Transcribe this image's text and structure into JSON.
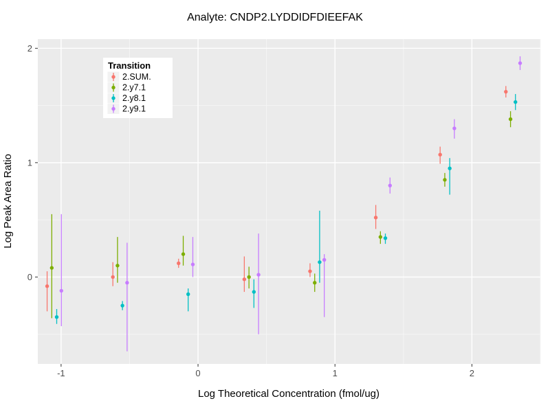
{
  "style": {
    "page_bg": "#FFFFFF",
    "panel_bg": "#EBEBEB",
    "grid_major": "#FFFFFF",
    "grid_minor": "#F5F5F5",
    "tick_color": "#333333",
    "tick_label_color": "#4D4D4D",
    "text_color": "#000000",
    "legend_bg": "#FFFFFF",
    "legend_key_bg": "#F2F2F2"
  },
  "chart_data": {
    "type": "scatter",
    "subtype": "pointrange-with-error-bars",
    "title": "Analyte: CNDP2.LYDDIDFDIEEFAK",
    "xlabel": "Log Theoretical Concentration (fmol/ug)",
    "ylabel": "Log Peak Area Ratio",
    "xlim": [
      -1.17,
      2.5
    ],
    "ylim": [
      -0.76,
      2.08
    ],
    "x_ticks": [
      -1,
      0,
      1,
      2
    ],
    "y_ticks": [
      0,
      1,
      2
    ],
    "x_minor": [
      -0.5,
      0.5,
      1.5,
      2.5
    ],
    "y_minor": [
      -0.5,
      0.5,
      1.5
    ],
    "grid": true,
    "legend_title": "Transition",
    "legend_position": "inside-top-left",
    "dodge": [
      -0.052,
      -0.018,
      0.018,
      0.052
    ],
    "x": [
      -1.05,
      -0.57,
      -0.09,
      0.39,
      0.87,
      1.35,
      1.82,
      2.3
    ],
    "series": [
      {
        "name": "2.SUM.",
        "color": "#F8766D",
        "y": [
          -0.08,
          0.0,
          0.12,
          -0.02,
          0.05,
          0.52,
          1.07,
          1.62
        ],
        "ymin": [
          -0.3,
          -0.08,
          0.08,
          -0.13,
          0.0,
          0.42,
          0.99,
          1.57
        ],
        "ymax": [
          0.05,
          0.13,
          0.16,
          0.18,
          0.12,
          0.63,
          1.14,
          1.67
        ]
      },
      {
        "name": "2.y7.1",
        "color": "#7CAE00",
        "y": [
          0.08,
          0.1,
          0.2,
          0.0,
          -0.05,
          0.35,
          0.85,
          1.38
        ],
        "ymin": [
          -0.36,
          -0.05,
          0.1,
          -0.1,
          -0.13,
          0.29,
          0.79,
          1.31
        ],
        "ymax": [
          0.55,
          0.35,
          0.36,
          0.09,
          0.03,
          0.4,
          0.91,
          1.45
        ]
      },
      {
        "name": "2.y8.1",
        "color": "#00BFC4",
        "y": [
          -0.35,
          -0.25,
          -0.15,
          -0.13,
          0.13,
          0.34,
          0.95,
          1.53
        ],
        "ymin": [
          -0.41,
          -0.29,
          -0.3,
          -0.27,
          -0.05,
          0.29,
          0.72,
          1.46
        ],
        "ymax": [
          -0.28,
          -0.21,
          -0.1,
          -0.02,
          0.58,
          0.38,
          1.04,
          1.6
        ]
      },
      {
        "name": "2.y9.1",
        "color": "#C77CFF",
        "y": [
          -0.12,
          -0.05,
          0.11,
          0.02,
          0.15,
          0.8,
          1.3,
          1.87
        ],
        "ymin": [
          -0.43,
          -0.65,
          0.0,
          -0.5,
          -0.35,
          0.73,
          1.21,
          1.81
        ],
        "ymax": [
          0.55,
          0.3,
          0.35,
          0.38,
          0.2,
          0.87,
          1.38,
          1.93
        ]
      }
    ]
  }
}
